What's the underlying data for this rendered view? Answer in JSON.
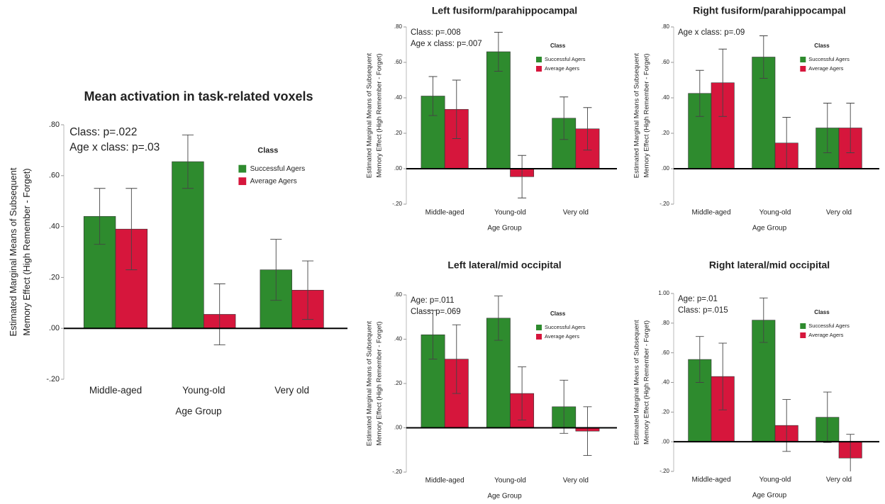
{
  "chart_data": [
    {
      "type": "bar",
      "title": "Mean activation in task-related voxels",
      "annotations": [
        "Class: p=.022",
        "Age x class: p=.03"
      ],
      "ylabel": [
        "Estimated Marginal Means of Subsequent",
        "Memory Effect (High Remember - Forget)"
      ],
      "xlabel": "Age Group",
      "legend_title": "Class",
      "categories": [
        "Middle-aged",
        "Young-old",
        "Very old"
      ],
      "series": [
        {
          "name": "Successful Agers",
          "color": "#2e8b2e",
          "values": [
            0.44,
            0.655,
            0.23
          ],
          "errors": [
            0.11,
            0.105,
            0.12
          ]
        },
        {
          "name": "Average Agers",
          "color": "#d6163c",
          "values": [
            0.39,
            0.055,
            0.15
          ],
          "errors": [
            0.16,
            0.12,
            0.115
          ]
        }
      ],
      "ylim": [
        -0.2,
        0.8
      ],
      "yticks": [
        {
          "value": 0.8,
          "label": ".80"
        },
        {
          "value": 0.6,
          "label": ".60"
        },
        {
          "value": 0.4,
          "label": ".40"
        },
        {
          "value": 0.2,
          "label": ".20"
        },
        {
          "value": 0,
          "label": ".00"
        },
        {
          "value": -0.2,
          "label": "-.20"
        }
      ]
    },
    {
      "type": "bar",
      "title": "Left fusiform/parahippocampal",
      "annotations": [
        "Class: p=.008",
        "Age x class: p=.007"
      ],
      "ylabel": [
        "Estimated Marginal Means of Subsequent",
        "Memory Effect (High Remember - Forget)"
      ],
      "xlabel": "Age Group",
      "legend_title": "Class",
      "categories": [
        "Middle-aged",
        "Young-old",
        "Very old"
      ],
      "series": [
        {
          "name": "Successful Agers",
          "color": "#2e8b2e",
          "values": [
            0.41,
            0.66,
            0.285
          ],
          "errors": [
            0.11,
            0.11,
            0.12
          ]
        },
        {
          "name": "Average Agers",
          "color": "#d6163c",
          "values": [
            0.335,
            -0.045,
            0.225
          ],
          "errors": [
            0.165,
            0.12,
            0.12
          ]
        }
      ],
      "ylim": [
        -0.2,
        0.8
      ],
      "yticks": [
        {
          "value": 0.8,
          "label": ".80"
        },
        {
          "value": 0.6,
          "label": ".60"
        },
        {
          "value": 0.4,
          "label": ".40"
        },
        {
          "value": 0.2,
          "label": ".20"
        },
        {
          "value": 0,
          "label": ".00"
        },
        {
          "value": -0.2,
          "label": "-.20"
        }
      ]
    },
    {
      "type": "bar",
      "title": "Right fusiform/parahippocampal",
      "annotations": [
        "Age x class: p=.09"
      ],
      "ylabel": [
        "Estimated Marginal Means of Subsequent",
        "Memory Effect (High Remember - Forget)"
      ],
      "xlabel": "Age Group",
      "legend_title": "Class",
      "categories": [
        "Middle-aged",
        "Young-old",
        "Very old"
      ],
      "series": [
        {
          "name": "Successful Agers",
          "color": "#2e8b2e",
          "values": [
            0.425,
            0.63,
            0.23
          ],
          "errors": [
            0.13,
            0.12,
            0.14
          ]
        },
        {
          "name": "Average Agers",
          "color": "#d6163c",
          "values": [
            0.485,
            0.145,
            0.23
          ],
          "errors": [
            0.19,
            0.145,
            0.14
          ]
        }
      ],
      "ylim": [
        -0.2,
        0.8
      ],
      "yticks": [
        {
          "value": 0.8,
          "label": ".80"
        },
        {
          "value": 0.6,
          "label": ".60"
        },
        {
          "value": 0.4,
          "label": ".40"
        },
        {
          "value": 0.2,
          "label": ".20"
        },
        {
          "value": 0,
          "label": ".00"
        },
        {
          "value": -0.2,
          "label": "-.20"
        }
      ]
    },
    {
      "type": "bar",
      "title": "Left lateral/mid occipital",
      "annotations": [
        "Age: p=.011",
        "Class: p=.069"
      ],
      "ylabel": [
        "Estimated Marginal Means of Subsequent",
        "Memory Effect (High Remember - Forget)"
      ],
      "xlabel": "Age Group",
      "legend_title": "Class",
      "categories": [
        "Middle-aged",
        "Young-old",
        "Very old"
      ],
      "series": [
        {
          "name": "Successful Agers",
          "color": "#2e8b2e",
          "values": [
            0.42,
            0.495,
            0.095
          ],
          "errors": [
            0.11,
            0.1,
            0.12
          ]
        },
        {
          "name": "Average Agers",
          "color": "#d6163c",
          "values": [
            0.31,
            0.155,
            -0.015
          ],
          "errors": [
            0.155,
            0.12,
            0.11
          ]
        }
      ],
      "ylim": [
        -0.2,
        0.6
      ],
      "yticks": [
        {
          "value": 0.6,
          "label": ".60"
        },
        {
          "value": 0.4,
          "label": ".40"
        },
        {
          "value": 0.2,
          "label": ".20"
        },
        {
          "value": 0,
          "label": ".00"
        },
        {
          "value": -0.2,
          "label": "-.20"
        }
      ]
    },
    {
      "type": "bar",
      "title": "Right lateral/mid occipital",
      "annotations": [
        "Age: p=.01",
        "Class: p=.015"
      ],
      "ylabel": [
        "Estimated Marginal Means of Subsequent",
        "Memory Effect (High Remember - Forget)"
      ],
      "xlabel": "Age Group",
      "legend_title": "Class",
      "categories": [
        "Middle-aged",
        "Young-old",
        "Very old"
      ],
      "series": [
        {
          "name": "Successful Agers",
          "color": "#2e8b2e",
          "values": [
            0.555,
            0.82,
            0.165
          ],
          "errors": [
            0.155,
            0.15,
            0.17
          ]
        },
        {
          "name": "Average Agers",
          "color": "#d6163c",
          "values": [
            0.44,
            0.11,
            -0.11
          ],
          "errors": [
            0.225,
            0.175,
            0.16
          ]
        }
      ],
      "ylim": [
        -0.2,
        1.0
      ],
      "yticks": [
        {
          "value": 1.0,
          "label": "1.00"
        },
        {
          "value": 0.8,
          "label": ".80"
        },
        {
          "value": 0.6,
          "label": ".60"
        },
        {
          "value": 0.4,
          "label": ".40"
        },
        {
          "value": 0.2,
          "label": ".20"
        },
        {
          "value": 0,
          "label": ".00"
        },
        {
          "value": -0.2,
          "label": "-.20"
        }
      ]
    }
  ]
}
